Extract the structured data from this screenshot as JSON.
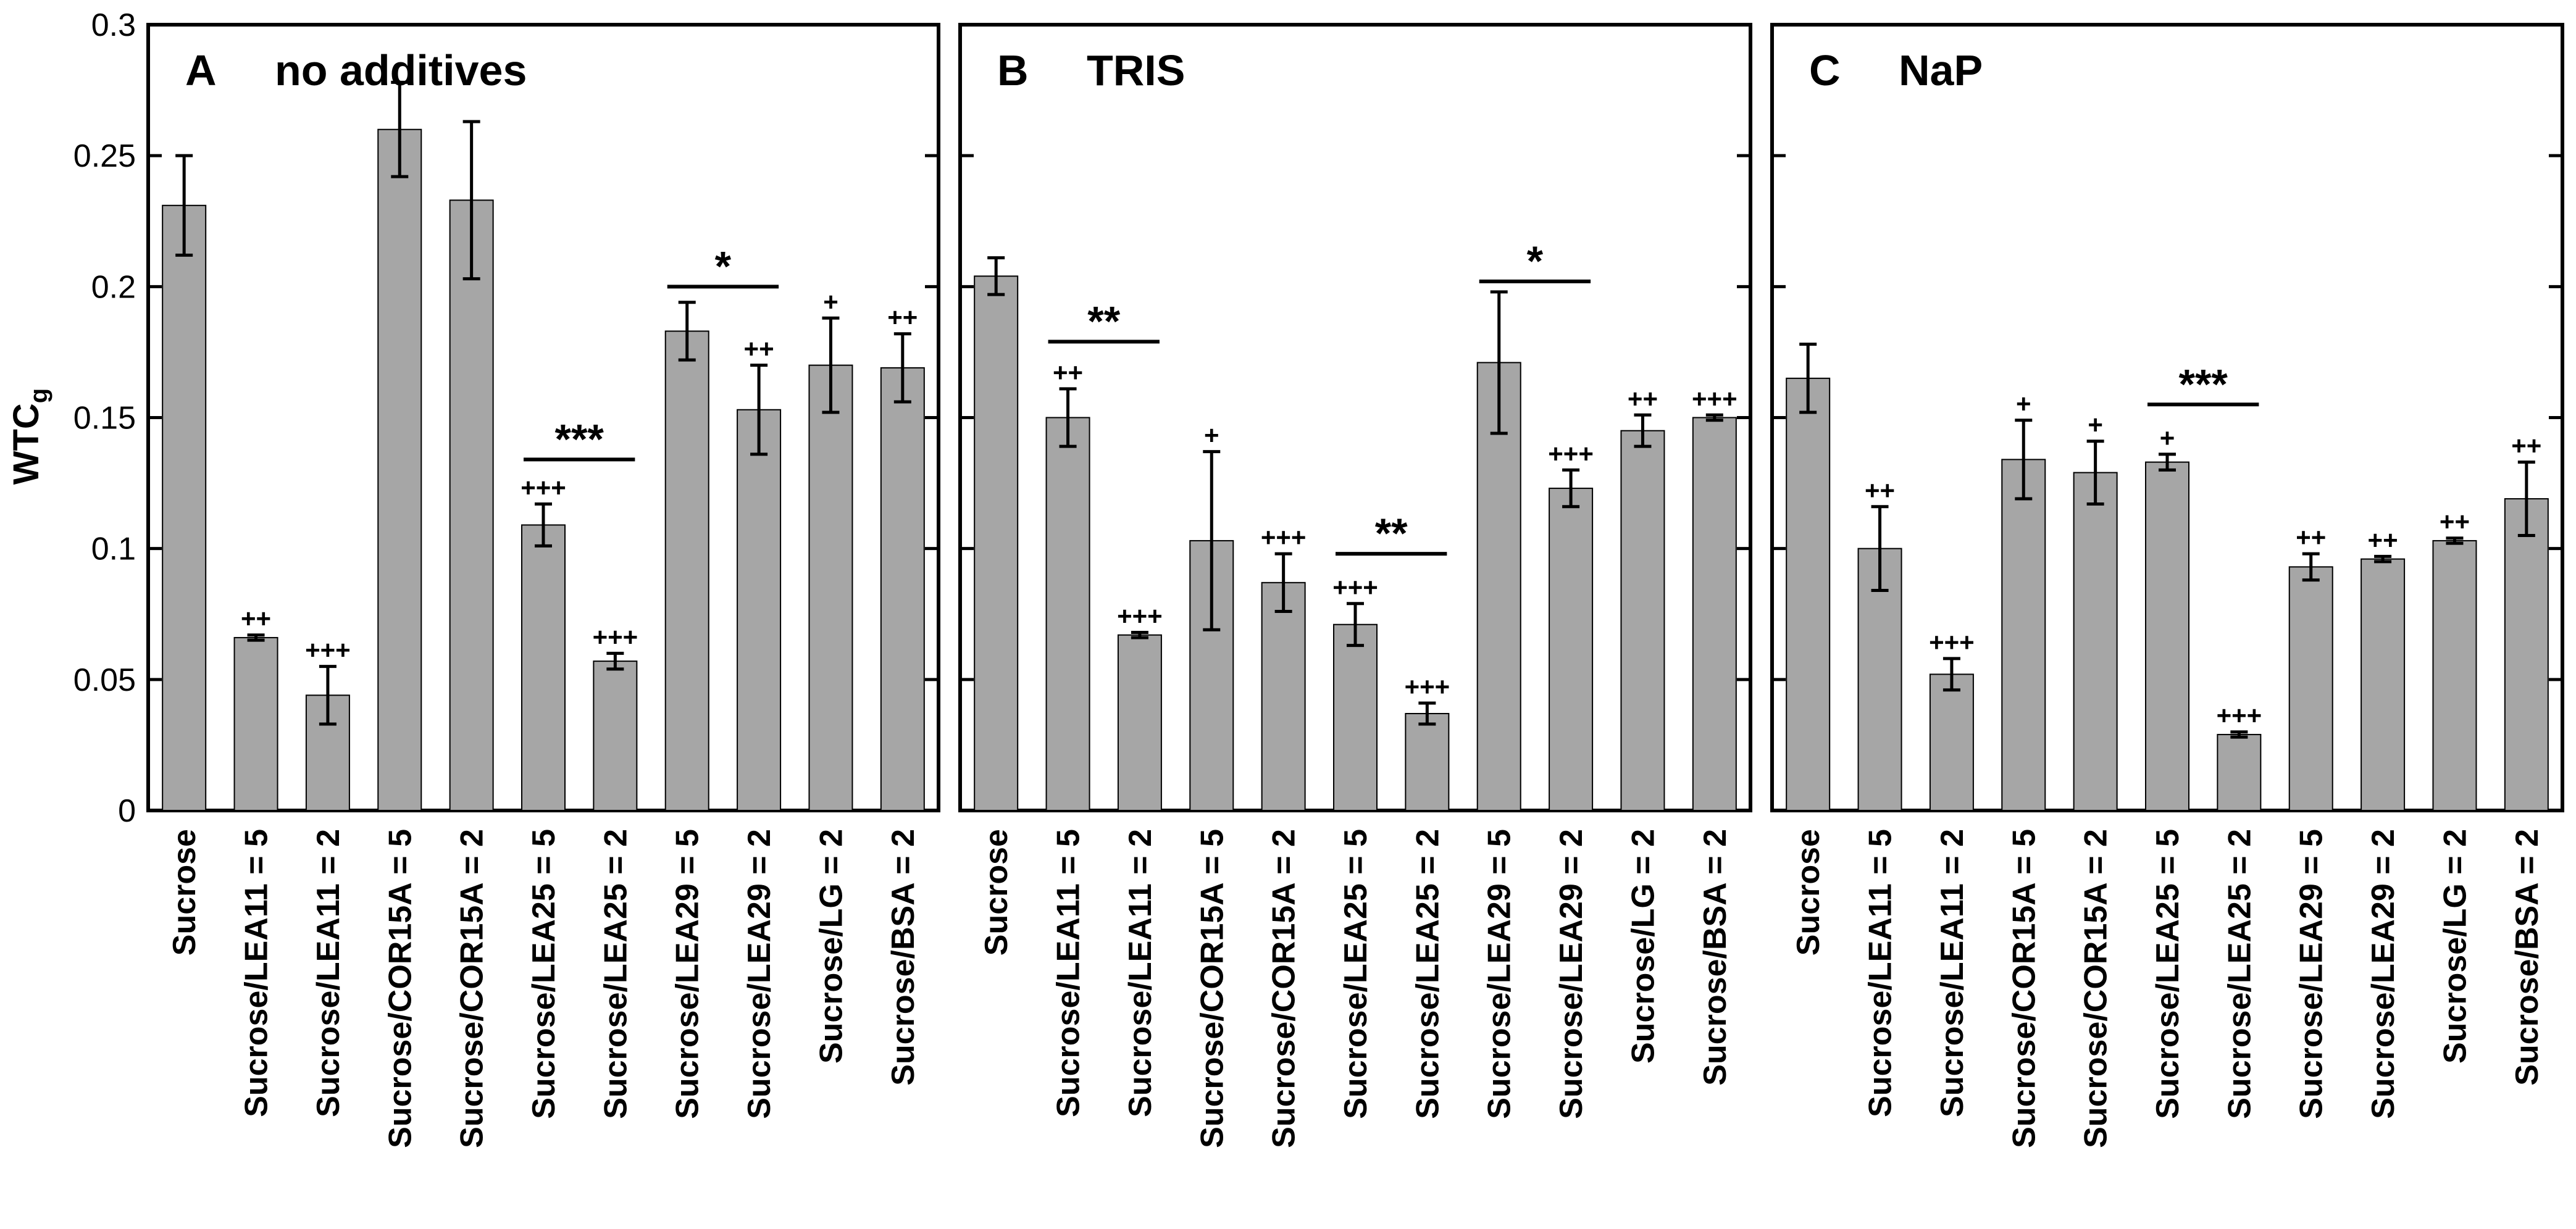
{
  "chart_data": {
    "type": "bar",
    "ylabel": "WTC",
    "ylabel_subscript": "g",
    "ylim": [
      0,
      0.3
    ],
    "yticks": [
      0,
      0.05,
      0.1,
      0.15,
      0.2,
      0.25,
      0.3
    ],
    "ytick_labels": [
      "0",
      "0.05",
      "0.1",
      "0.15",
      "0.2",
      "0.25",
      "0.3"
    ],
    "categories": [
      "Sucrose",
      "Sucrose/LEA11 = 5",
      "Sucrose/LEA11 = 2",
      "Sucrose/COR15A = 5",
      "Sucrose/COR15A = 2",
      "Sucrose/LEA25 = 5",
      "Sucrose/LEA25 = 2",
      "Sucrose/LEA29 = 5",
      "Sucrose/LEA29 = 2",
      "Sucrose/LG = 2",
      "Sucrose/BSA = 2"
    ],
    "bar_color": "#a6a6a6",
    "panels": [
      {
        "letter": "A",
        "title": "no additives",
        "values": [
          0.231,
          0.066,
          0.044,
          0.26,
          0.233,
          0.109,
          0.057,
          0.183,
          0.153,
          0.17,
          0.169
        ],
        "errors": [
          0.019,
          0.001,
          0.011,
          0.018,
          0.03,
          0.008,
          0.003,
          0.011,
          0.017,
          0.018,
          0.013
        ],
        "markers": [
          "",
          "++",
          "+++",
          "",
          "",
          "+++",
          "+++",
          "",
          "++",
          "+",
          "++"
        ],
        "brackets": [
          {
            "from": 5,
            "to": 6,
            "y": 0.134,
            "label": "***"
          },
          {
            "from": 7,
            "to": 8,
            "y": 0.2,
            "label": "*"
          }
        ]
      },
      {
        "letter": "B",
        "title": "TRIS",
        "values": [
          0.204,
          0.15,
          0.067,
          0.103,
          0.087,
          0.071,
          0.037,
          0.171,
          0.123,
          0.145,
          0.15
        ],
        "errors": [
          0.007,
          0.011,
          0.001,
          0.034,
          0.011,
          0.008,
          0.004,
          0.027,
          0.007,
          0.006,
          0.001
        ],
        "markers": [
          "",
          "++",
          "+++",
          "+",
          "+++",
          "+++",
          "+++",
          "",
          "+++",
          "++",
          "+++"
        ],
        "brackets": [
          {
            "from": 1,
            "to": 2,
            "y": 0.179,
            "label": "**"
          },
          {
            "from": 5,
            "to": 6,
            "y": 0.098,
            "label": "**"
          },
          {
            "from": 7,
            "to": 8,
            "y": 0.202,
            "label": "*"
          }
        ]
      },
      {
        "letter": "C",
        "title": "NaP",
        "values": [
          0.165,
          0.1,
          0.052,
          0.134,
          0.129,
          0.133,
          0.029,
          0.093,
          0.096,
          0.103,
          0.119
        ],
        "errors": [
          0.013,
          0.016,
          0.006,
          0.015,
          0.012,
          0.003,
          0.001,
          0.005,
          0.001,
          0.001,
          0.014
        ],
        "markers": [
          "",
          "++",
          "+++",
          "+",
          "+",
          "+",
          "+++",
          "++",
          "++",
          "++",
          "++"
        ],
        "brackets": [
          {
            "from": 5,
            "to": 6,
            "y": 0.155,
            "label": "***"
          }
        ]
      }
    ]
  }
}
